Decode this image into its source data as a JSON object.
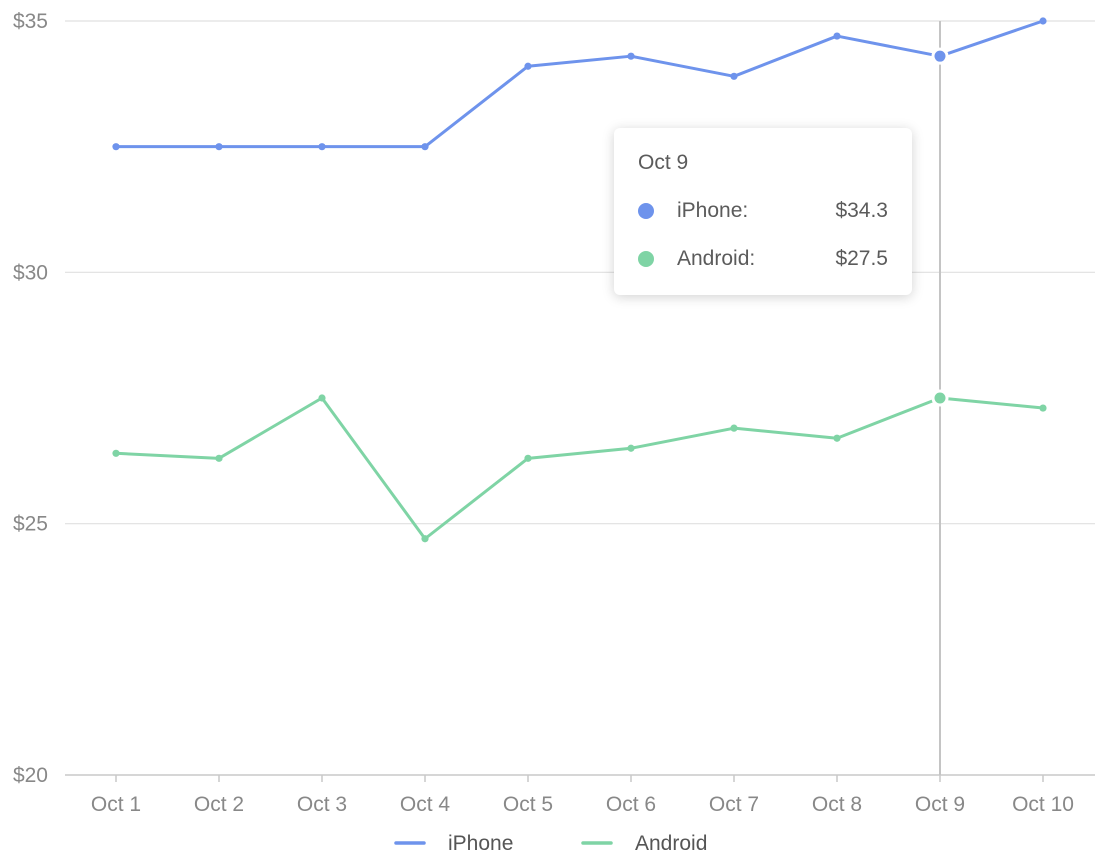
{
  "chart_data": {
    "type": "line",
    "categories": [
      "Oct 1",
      "Oct 2",
      "Oct 3",
      "Oct 4",
      "Oct 5",
      "Oct 6",
      "Oct 7",
      "Oct 8",
      "Oct 9",
      "Oct 10"
    ],
    "series": [
      {
        "name": "iPhone",
        "color": "#6e93ec",
        "values": [
          32.5,
          32.5,
          32.5,
          32.5,
          34.1,
          34.3,
          33.9,
          34.7,
          34.3,
          35.0
        ]
      },
      {
        "name": "Android",
        "color": "#7fd4a5",
        "values": [
          26.4,
          26.3,
          27.5,
          24.7,
          26.3,
          26.5,
          26.9,
          26.7,
          27.5,
          27.3
        ]
      }
    ],
    "ylim": [
      20,
      35
    ],
    "yticks": [
      20,
      25,
      30,
      35
    ],
    "ytick_labels": [
      "$20",
      "$25",
      "$30",
      "$35"
    ],
    "grid": true,
    "legend_position": "bottom-center",
    "hover_category": "Oct 9"
  },
  "tooltip": {
    "title": "Oct 9",
    "rows": [
      {
        "name": "iPhone:",
        "value": "$34.3",
        "color": "#6e93ec"
      },
      {
        "name": "Android:",
        "value": "$27.5",
        "color": "#7fd4a5"
      }
    ]
  },
  "legend": {
    "items": [
      {
        "label": "iPhone",
        "color": "#6e93ec"
      },
      {
        "label": "Android",
        "color": "#7fd4a5"
      }
    ]
  }
}
